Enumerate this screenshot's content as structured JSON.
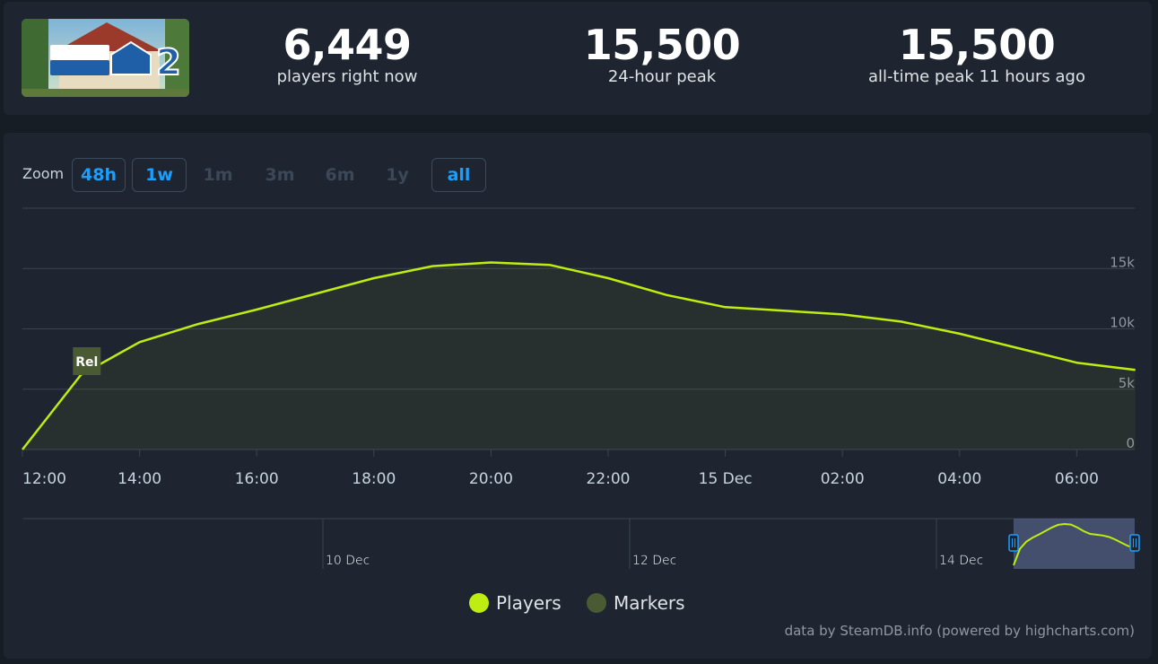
{
  "stats": [
    {
      "value": "6,449",
      "label": "players right now"
    },
    {
      "value": "15,500",
      "label": "24-hour peak"
    },
    {
      "value": "15,500",
      "label": "all-time peak 11 hours ago"
    }
  ],
  "logo": {
    "text": "HOUSE FLIPPER 2"
  },
  "zoom": {
    "label": "Zoom",
    "buttons": [
      {
        "label": "48h",
        "enabled": true
      },
      {
        "label": "1w",
        "enabled": true
      },
      {
        "label": "1m",
        "enabled": false
      },
      {
        "label": "3m",
        "enabled": false
      },
      {
        "label": "6m",
        "enabled": false
      },
      {
        "label": "1y",
        "enabled": false
      },
      {
        "label": "all",
        "enabled": true
      }
    ]
  },
  "chart_data": {
    "type": "line",
    "x_labels": [
      "12:00",
      "14:00",
      "16:00",
      "18:00",
      "20:00",
      "22:00",
      "15 Dec",
      "02:00",
      "04:00",
      "06:00"
    ],
    "y_ticks": [
      "0",
      "5k",
      "10k",
      "15k"
    ],
    "ylim": [
      0,
      20000
    ],
    "grid": true,
    "series": [
      {
        "name": "Players",
        "color": "#beee11",
        "x": [
          "12:00",
          "13:00",
          "14:00",
          "15:00",
          "16:00",
          "17:00",
          "18:00",
          "19:00",
          "20:00",
          "21:00",
          "22:00",
          "23:00",
          "00:00",
          "01:00",
          "02:00",
          "03:00",
          "04:00",
          "05:00",
          "06:00",
          "07:00"
        ],
        "values": [
          0,
          6200,
          8900,
          10400,
          11600,
          12900,
          14200,
          15200,
          15500,
          15300,
          14200,
          12800,
          11800,
          11500,
          11200,
          10600,
          9600,
          8400,
          7200,
          6600
        ]
      }
    ],
    "markers": [
      {
        "label": "Rel",
        "x": "13:00"
      }
    ],
    "legend": [
      {
        "name": "Players",
        "color": "#beee11"
      },
      {
        "name": "Markers",
        "color": "#4a5a32"
      }
    ],
    "navigator": {
      "labels": [
        "10 Dec",
        "12 Dec",
        "14 Dec"
      ]
    },
    "credits": "data by SteamDB.info (powered by highcharts.com)"
  }
}
